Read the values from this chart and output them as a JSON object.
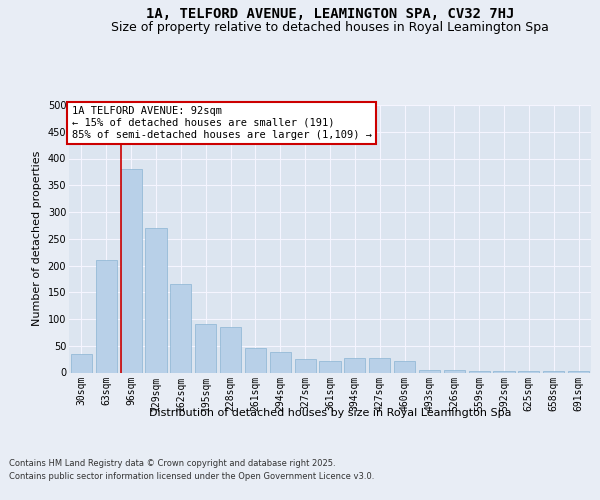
{
  "title": "1A, TELFORD AVENUE, LEAMINGTON SPA, CV32 7HJ",
  "subtitle": "Size of property relative to detached houses in Royal Leamington Spa",
  "xlabel": "Distribution of detached houses by size in Royal Leamington Spa",
  "ylabel": "Number of detached properties",
  "footer_line1": "Contains HM Land Registry data © Crown copyright and database right 2025.",
  "footer_line2": "Contains public sector information licensed under the Open Government Licence v3.0.",
  "categories": [
    "30sqm",
    "63sqm",
    "96sqm",
    "129sqm",
    "162sqm",
    "195sqm",
    "228sqm",
    "261sqm",
    "294sqm",
    "327sqm",
    "361sqm",
    "394sqm",
    "427sqm",
    "460sqm",
    "493sqm",
    "526sqm",
    "559sqm",
    "592sqm",
    "625sqm",
    "658sqm",
    "691sqm"
  ],
  "values": [
    35,
    210,
    380,
    270,
    165,
    90,
    85,
    45,
    38,
    25,
    22,
    28,
    27,
    22,
    5,
    5,
    3,
    2,
    2,
    2,
    2
  ],
  "bar_color": "#b8d0e8",
  "bar_edge_color": "#8ab4d4",
  "subject_line_color": "#cc0000",
  "subject_line_xindex": 1.575,
  "annotation_title": "1A TELFORD AVENUE: 92sqm",
  "annotation_line1": "← 15% of detached houses are smaller (191)",
  "annotation_line2": "85% of semi-detached houses are larger (1,109) →",
  "annotation_box_edgecolor": "#cc0000",
  "ylim_max": 500,
  "yticks": [
    0,
    50,
    100,
    150,
    200,
    250,
    300,
    350,
    400,
    450,
    500
  ],
  "bg_color": "#e8edf5",
  "plot_bg_color": "#dce5f0",
  "grid_color": "#f5f5ff",
  "title_fontsize": 10,
  "subtitle_fontsize": 9,
  "axis_label_fontsize": 8,
  "tick_fontsize": 7,
  "footer_fontsize": 6,
  "annotation_fontsize": 7.5
}
